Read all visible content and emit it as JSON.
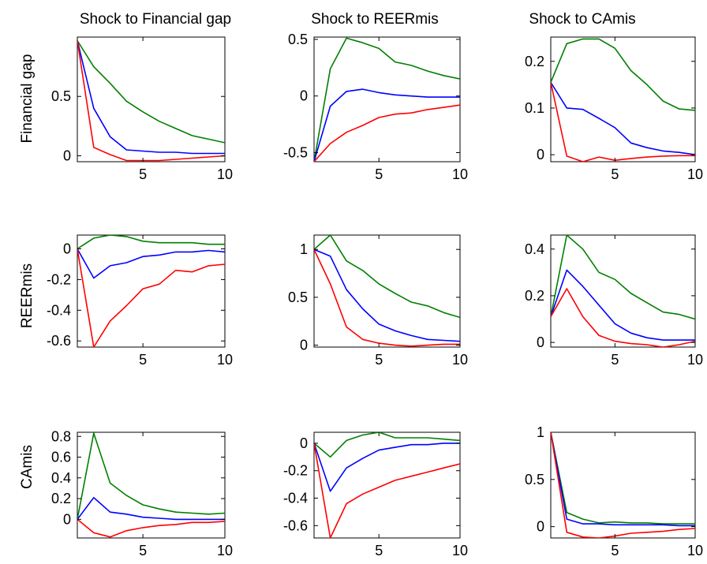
{
  "colors": {
    "upper": "#008000",
    "median": "#0000ff",
    "lower": "#ff0000"
  },
  "column_titles": [
    "Shock to Financial gap",
    "Shock to REERmis",
    "Shock to CAmis"
  ],
  "row_labels": [
    "Financial gap",
    "REERmis",
    "CAmis"
  ],
  "chart_data": [
    {
      "type": "line",
      "row": 0,
      "col": 0,
      "x": [
        1,
        2,
        3,
        4,
        5,
        6,
        7,
        8,
        9,
        10
      ],
      "xlim": [
        1,
        10
      ],
      "ylim": [
        -0.05,
        1.0
      ],
      "xticks": [
        5,
        10
      ],
      "xtick_labels": [
        "5",
        "10"
      ],
      "yticks": [
        0,
        0.5
      ],
      "ytick_labels": [
        "0",
        "0.5"
      ],
      "series": [
        {
          "role": "upper",
          "values": [
            0.97,
            0.75,
            0.61,
            0.46,
            0.37,
            0.29,
            0.23,
            0.17,
            0.14,
            0.11
          ]
        },
        {
          "role": "median",
          "values": [
            0.97,
            0.4,
            0.16,
            0.05,
            0.04,
            0.03,
            0.03,
            0.02,
            0.02,
            0.02
          ]
        },
        {
          "role": "lower",
          "values": [
            0.97,
            0.07,
            0.01,
            -0.04,
            -0.04,
            -0.04,
            -0.03,
            -0.02,
            -0.01,
            0.0
          ]
        }
      ]
    },
    {
      "type": "line",
      "row": 0,
      "col": 1,
      "x": [
        1,
        2,
        3,
        4,
        5,
        6,
        7,
        8,
        9,
        10
      ],
      "xlim": [
        1,
        10
      ],
      "ylim": [
        -0.58,
        0.52
      ],
      "xticks": [
        5,
        10
      ],
      "xtick_labels": [
        "5",
        "10"
      ],
      "yticks": [
        -0.5,
        0,
        0.5
      ],
      "ytick_labels": [
        "-0.5",
        "0",
        "0.5"
      ],
      "series": [
        {
          "role": "upper",
          "values": [
            -0.58,
            0.24,
            0.51,
            0.47,
            0.42,
            0.3,
            0.27,
            0.22,
            0.18,
            0.15
          ]
        },
        {
          "role": "median",
          "values": [
            -0.58,
            -0.09,
            0.04,
            0.06,
            0.03,
            0.01,
            0.0,
            -0.01,
            -0.01,
            -0.01
          ]
        },
        {
          "role": "lower",
          "values": [
            -0.58,
            -0.42,
            -0.32,
            -0.26,
            -0.19,
            -0.16,
            -0.15,
            -0.12,
            -0.1,
            -0.08
          ]
        }
      ]
    },
    {
      "type": "line",
      "row": 0,
      "col": 2,
      "x": [
        1,
        2,
        3,
        4,
        5,
        6,
        7,
        8,
        9,
        10
      ],
      "xlim": [
        1,
        10
      ],
      "ylim": [
        -0.015,
        0.252
      ],
      "xticks": [
        5,
        10
      ],
      "xtick_labels": [
        "5",
        "10"
      ],
      "yticks": [
        0,
        0.1,
        0.2
      ],
      "ytick_labels": [
        "0",
        "0.1",
        "0.2"
      ],
      "series": [
        {
          "role": "upper",
          "values": [
            0.155,
            0.238,
            0.248,
            0.248,
            0.228,
            0.18,
            0.15,
            0.115,
            0.098,
            0.095
          ]
        },
        {
          "role": "median",
          "values": [
            0.155,
            0.1,
            0.097,
            0.078,
            0.058,
            0.025,
            0.015,
            0.008,
            0.005,
            0.0
          ]
        },
        {
          "role": "lower",
          "values": [
            0.155,
            -0.003,
            -0.015,
            -0.005,
            -0.012,
            -0.008,
            -0.005,
            -0.003,
            -0.002,
            -0.002
          ]
        }
      ]
    },
    {
      "type": "line",
      "row": 1,
      "col": 0,
      "x": [
        1,
        2,
        3,
        4,
        5,
        6,
        7,
        8,
        9,
        10
      ],
      "xlim": [
        1,
        10
      ],
      "ylim": [
        -0.64,
        0.09
      ],
      "xticks": [
        5,
        10
      ],
      "xtick_labels": [
        "5",
        "10"
      ],
      "yticks": [
        -0.6,
        -0.4,
        -0.2,
        0
      ],
      "ytick_labels": [
        "-0.6",
        "-0.4",
        "-0.2",
        "0"
      ],
      "series": [
        {
          "role": "upper",
          "values": [
            0.0,
            0.07,
            0.09,
            0.08,
            0.05,
            0.04,
            0.04,
            0.04,
            0.03,
            0.03
          ]
        },
        {
          "role": "median",
          "values": [
            0.0,
            -0.19,
            -0.11,
            -0.09,
            -0.05,
            -0.04,
            -0.02,
            -0.02,
            -0.01,
            -0.02
          ]
        },
        {
          "role": "lower",
          "values": [
            0.0,
            -0.64,
            -0.47,
            -0.37,
            -0.26,
            -0.23,
            -0.14,
            -0.15,
            -0.11,
            -0.1
          ]
        }
      ]
    },
    {
      "type": "line",
      "row": 1,
      "col": 1,
      "x": [
        1,
        2,
        3,
        4,
        5,
        6,
        7,
        8,
        9,
        10
      ],
      "xlim": [
        1,
        10
      ],
      "ylim": [
        -0.02,
        1.15
      ],
      "xticks": [
        5,
        10
      ],
      "xtick_labels": [
        "5",
        "10"
      ],
      "yticks": [
        0,
        0.5,
        1
      ],
      "ytick_labels": [
        "0",
        "0.5",
        "1"
      ],
      "series": [
        {
          "role": "upper",
          "values": [
            1.0,
            1.15,
            0.88,
            0.78,
            0.64,
            0.54,
            0.45,
            0.41,
            0.34,
            0.29
          ]
        },
        {
          "role": "median",
          "values": [
            1.0,
            0.93,
            0.58,
            0.38,
            0.22,
            0.15,
            0.1,
            0.06,
            0.05,
            0.04
          ]
        },
        {
          "role": "lower",
          "values": [
            1.0,
            0.64,
            0.19,
            0.06,
            0.02,
            0.0,
            -0.01,
            0.0,
            0.01,
            0.01
          ]
        }
      ]
    },
    {
      "type": "line",
      "row": 1,
      "col": 2,
      "x": [
        1,
        2,
        3,
        4,
        5,
        6,
        7,
        8,
        9,
        10
      ],
      "xlim": [
        1,
        10
      ],
      "ylim": [
        -0.02,
        0.46
      ],
      "xticks": [
        5,
        10
      ],
      "xtick_labels": [
        "5",
        "10"
      ],
      "yticks": [
        0,
        0.2,
        0.4
      ],
      "ytick_labels": [
        "0",
        "0.2",
        "0.4"
      ],
      "series": [
        {
          "role": "upper",
          "values": [
            0.11,
            0.46,
            0.4,
            0.3,
            0.27,
            0.21,
            0.17,
            0.13,
            0.12,
            0.1
          ]
        },
        {
          "role": "median",
          "values": [
            0.11,
            0.31,
            0.24,
            0.16,
            0.08,
            0.04,
            0.02,
            0.01,
            0.01,
            0.01
          ]
        },
        {
          "role": "lower",
          "values": [
            0.11,
            0.23,
            0.11,
            0.03,
            0.005,
            -0.005,
            -0.01,
            -0.02,
            -0.01,
            0.005
          ]
        }
      ]
    },
    {
      "type": "line",
      "row": 2,
      "col": 0,
      "x": [
        1,
        2,
        3,
        4,
        5,
        6,
        7,
        8,
        9,
        10
      ],
      "xlim": [
        1,
        10
      ],
      "ylim": [
        -0.18,
        0.84
      ],
      "xticks": [
        5,
        10
      ],
      "xtick_labels": [
        "5",
        "10"
      ],
      "yticks": [
        0,
        0.2,
        0.4,
        0.6,
        0.8
      ],
      "ytick_labels": [
        "0",
        "0.2",
        "0.4",
        "0.6",
        "0.8"
      ],
      "series": [
        {
          "role": "upper",
          "values": [
            0.0,
            0.83,
            0.35,
            0.23,
            0.14,
            0.1,
            0.07,
            0.06,
            0.05,
            0.06
          ]
        },
        {
          "role": "median",
          "values": [
            0.0,
            0.21,
            0.07,
            0.05,
            0.02,
            0.01,
            0.0,
            0.0,
            0.0,
            0.0
          ]
        },
        {
          "role": "lower",
          "values": [
            0.0,
            -0.13,
            -0.17,
            -0.11,
            -0.08,
            -0.06,
            -0.05,
            -0.03,
            -0.03,
            -0.02
          ]
        }
      ]
    },
    {
      "type": "line",
      "row": 2,
      "col": 1,
      "x": [
        1,
        2,
        3,
        4,
        5,
        6,
        7,
        8,
        9,
        10
      ],
      "xlim": [
        1,
        10
      ],
      "ylim": [
        -0.69,
        0.08
      ],
      "xticks": [
        5,
        10
      ],
      "xtick_labels": [
        "5",
        "10"
      ],
      "yticks": [
        -0.6,
        -0.4,
        -0.2,
        0
      ],
      "ytick_labels": [
        "-0.6",
        "-0.4",
        "-0.2",
        "0"
      ],
      "series": [
        {
          "role": "upper",
          "values": [
            0.0,
            -0.1,
            0.02,
            0.06,
            0.08,
            0.04,
            0.04,
            0.04,
            0.03,
            0.02
          ]
        },
        {
          "role": "median",
          "values": [
            0.0,
            -0.35,
            -0.18,
            -0.11,
            -0.05,
            -0.03,
            -0.01,
            -0.01,
            0.0,
            0.0
          ]
        },
        {
          "role": "lower",
          "values": [
            0.0,
            -0.69,
            -0.44,
            -0.37,
            -0.32,
            -0.27,
            -0.24,
            -0.21,
            -0.18,
            -0.15
          ]
        }
      ]
    },
    {
      "type": "line",
      "row": 2,
      "col": 2,
      "x": [
        1,
        2,
        3,
        4,
        5,
        6,
        7,
        8,
        9,
        10
      ],
      "xlim": [
        1,
        10
      ],
      "ylim": [
        -0.12,
        1.0
      ],
      "xticks": [
        5,
        10
      ],
      "xtick_labels": [
        "5",
        "10"
      ],
      "yticks": [
        0,
        0.5,
        1
      ],
      "ytick_labels": [
        "0",
        "0.5",
        "1"
      ],
      "series": [
        {
          "role": "upper",
          "values": [
            1.0,
            0.15,
            0.08,
            0.04,
            0.05,
            0.04,
            0.04,
            0.03,
            0.03,
            0.03
          ]
        },
        {
          "role": "median",
          "values": [
            1.0,
            0.08,
            0.03,
            0.03,
            0.02,
            0.02,
            0.02,
            0.02,
            0.01,
            0.01
          ]
        },
        {
          "role": "lower",
          "values": [
            1.0,
            -0.06,
            -0.11,
            -0.12,
            -0.1,
            -0.07,
            -0.06,
            -0.05,
            -0.03,
            -0.02
          ]
        }
      ]
    }
  ]
}
